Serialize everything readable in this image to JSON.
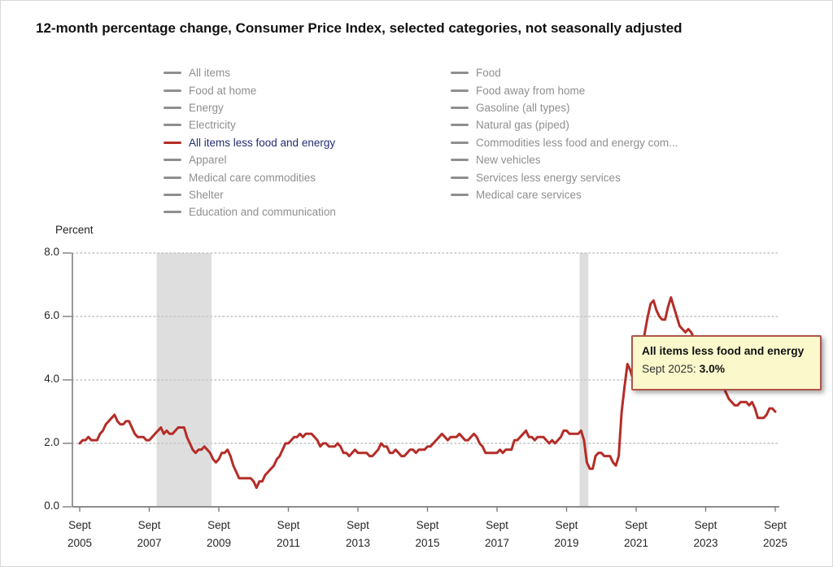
{
  "title": "12-month percentage change, Consumer Price Index, selected categories, not seasonally adjusted",
  "colors": {
    "line": "#b42d28",
    "legend_active_text": "#252d72",
    "legend_inactive": "#8f8f8f",
    "recession_band": "#dedede",
    "axis": "#7d7d7d",
    "grid": "#c4c4c4",
    "tooltip_bg": "#fbf8cc",
    "tooltip_border": "#b0544a"
  },
  "legend": {
    "columns": [
      {
        "items": [
          {
            "label": "All items",
            "active": false
          },
          {
            "label": "Food at home",
            "active": false
          },
          {
            "label": "Energy",
            "active": false
          },
          {
            "label": "Electricity",
            "active": false
          },
          {
            "label": "All items less food and energy",
            "active": true
          },
          {
            "label": "Apparel",
            "active": false
          },
          {
            "label": "Medical care commodities",
            "active": false
          },
          {
            "label": "Shelter",
            "active": false
          },
          {
            "label": "Education and communication",
            "active": false
          }
        ]
      },
      {
        "items": [
          {
            "label": "Food",
            "active": false
          },
          {
            "label": "Food away from home",
            "active": false
          },
          {
            "label": "Gasoline (all types)",
            "active": false
          },
          {
            "label": "Natural gas (piped)",
            "active": false
          },
          {
            "label": "Commodities less food and energy com...",
            "active": false
          },
          {
            "label": "New vehicles",
            "active": false
          },
          {
            "label": "Services less energy services",
            "active": false
          },
          {
            "label": "Medical care services",
            "active": false
          }
        ]
      }
    ]
  },
  "tooltip": {
    "title": "All items less food and energy",
    "label": "Sept 2025: ",
    "value": "3.0%"
  },
  "chart_data": {
    "type": "line",
    "title": "12-month percentage change, Consumer Price Index, selected categories, not seasonally adjusted",
    "ylabel": "Percent",
    "ylim": [
      0,
      8
    ],
    "grid": "dotted horizontal at 2.0 intervals",
    "series_name": "All items less food and energy",
    "frequency": "monthly",
    "start": "2005-09",
    "end": "2025-09",
    "y_ticks": [
      "0.0",
      "2.0",
      "4.0",
      "6.0",
      "8.0"
    ],
    "x_ticks": [
      {
        "month": "Sept",
        "year": "2005"
      },
      {
        "month": "Sept",
        "year": "2007"
      },
      {
        "month": "Sept",
        "year": "2009"
      },
      {
        "month": "Sept",
        "year": "2011"
      },
      {
        "month": "Sept",
        "year": "2013"
      },
      {
        "month": "Sept",
        "year": "2015"
      },
      {
        "month": "Sept",
        "year": "2017"
      },
      {
        "month": "Sept",
        "year": "2019"
      },
      {
        "month": "Sept",
        "year": "2021"
      },
      {
        "month": "Sept",
        "year": "2023"
      },
      {
        "month": "Sept",
        "year": "2025"
      }
    ],
    "recessions": [
      {
        "from": "2007-12",
        "to": "2009-06"
      },
      {
        "from": "2020-02",
        "to": "2020-04"
      }
    ],
    "values": [
      2.0,
      2.1,
      2.1,
      2.2,
      2.1,
      2.1,
      2.1,
      2.3,
      2.4,
      2.6,
      2.7,
      2.8,
      2.9,
      2.7,
      2.6,
      2.6,
      2.7,
      2.7,
      2.5,
      2.3,
      2.2,
      2.2,
      2.2,
      2.1,
      2.1,
      2.2,
      2.3,
      2.4,
      2.5,
      2.3,
      2.4,
      2.3,
      2.3,
      2.4,
      2.5,
      2.5,
      2.5,
      2.2,
      2.0,
      1.8,
      1.7,
      1.8,
      1.8,
      1.9,
      1.8,
      1.7,
      1.5,
      1.4,
      1.5,
      1.7,
      1.7,
      1.8,
      1.6,
      1.3,
      1.1,
      0.9,
      0.9,
      0.9,
      0.9,
      0.9,
      0.8,
      0.6,
      0.8,
      0.8,
      1.0,
      1.1,
      1.2,
      1.3,
      1.5,
      1.6,
      1.8,
      2.0,
      2.0,
      2.1,
      2.2,
      2.2,
      2.3,
      2.2,
      2.3,
      2.3,
      2.3,
      2.2,
      2.1,
      1.9,
      2.0,
      2.0,
      1.9,
      1.9,
      1.9,
      2.0,
      1.9,
      1.7,
      1.7,
      1.6,
      1.7,
      1.8,
      1.7,
      1.7,
      1.7,
      1.7,
      1.6,
      1.6,
      1.7,
      1.8,
      2.0,
      1.9,
      1.9,
      1.7,
      1.7,
      1.8,
      1.7,
      1.6,
      1.6,
      1.7,
      1.8,
      1.8,
      1.7,
      1.8,
      1.8,
      1.8,
      1.9,
      1.9,
      2.0,
      2.1,
      2.2,
      2.3,
      2.2,
      2.1,
      2.2,
      2.2,
      2.2,
      2.3,
      2.2,
      2.1,
      2.1,
      2.2,
      2.3,
      2.2,
      2.0,
      1.9,
      1.7,
      1.7,
      1.7,
      1.7,
      1.7,
      1.8,
      1.7,
      1.8,
      1.8,
      1.8,
      2.1,
      2.1,
      2.2,
      2.3,
      2.4,
      2.2,
      2.2,
      2.1,
      2.2,
      2.2,
      2.2,
      2.1,
      2.0,
      2.1,
      2.0,
      2.1,
      2.2,
      2.4,
      2.4,
      2.3,
      2.3,
      2.3,
      2.3,
      2.4,
      2.1,
      1.4,
      1.2,
      1.2,
      1.6,
      1.7,
      1.7,
      1.6,
      1.6,
      1.6,
      1.4,
      1.3,
      1.6,
      3.0,
      3.8,
      4.5,
      4.3,
      4.0,
      4.0,
      4.6,
      4.9,
      5.5,
      6.0,
      6.4,
      6.5,
      6.2,
      6.0,
      5.9,
      5.9,
      6.3,
      6.6,
      6.3,
      6.0,
      5.7,
      5.6,
      5.5,
      5.6,
      5.5,
      5.3,
      4.8,
      4.7,
      4.3,
      4.1,
      4.0,
      4.0,
      3.9,
      3.9,
      3.8,
      3.8,
      3.6,
      3.4,
      3.3,
      3.2,
      3.2,
      3.3,
      3.3,
      3.3,
      3.2,
      3.3,
      3.1,
      2.8,
      2.8,
      2.8,
      2.9,
      3.1,
      3.1,
      3.0
    ],
    "last_point": {
      "label": "Sept 2025",
      "value": 3.0
    }
  }
}
